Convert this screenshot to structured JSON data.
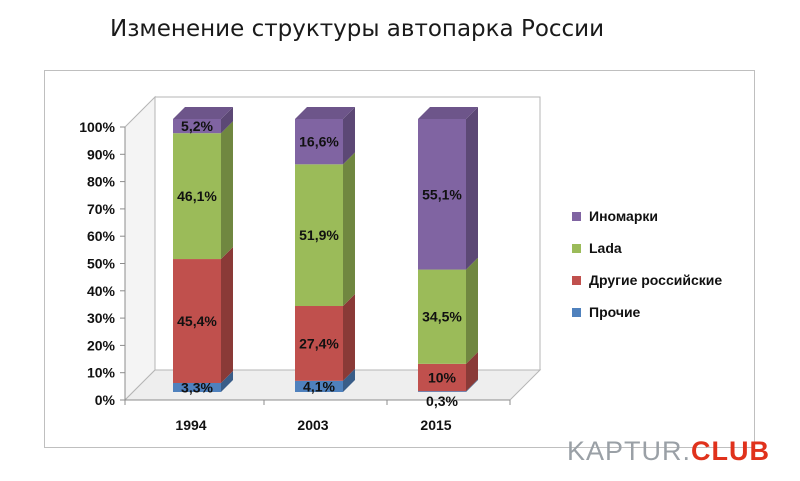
{
  "chart_data": {
    "type": "bar",
    "stacked": true,
    "stacked_percent": true,
    "three_d": true,
    "title": "Изменение структуры автопарка России",
    "categories": [
      "1994",
      "2003",
      "2015"
    ],
    "y_ticks": [
      "0%",
      "10%",
      "20%",
      "30%",
      "40%",
      "50%",
      "60%",
      "70%",
      "80%",
      "90%",
      "100%"
    ],
    "ylim": [
      0,
      100
    ],
    "grid": false,
    "legend_position": "right",
    "series": [
      {
        "name": "Прочие",
        "color": "#4f81bd",
        "values": [
          3.3,
          4.1,
          0.3
        ],
        "labels": [
          "3,3%",
          "4,1%",
          "0,3%"
        ]
      },
      {
        "name": "Другие российские",
        "color": "#c0504d",
        "values": [
          45.4,
          27.4,
          10
        ],
        "labels": [
          "45,4%",
          "27,4%",
          "10%"
        ]
      },
      {
        "name": "Lada",
        "color": "#9bbb59",
        "values": [
          46.1,
          51.9,
          34.5
        ],
        "labels": [
          "46,1%",
          "51,9%",
          "34,5%"
        ]
      },
      {
        "name": "Иномарки",
        "color": "#8064a2",
        "values": [
          5.2,
          16.6,
          55.1
        ],
        "labels": [
          "5,2%",
          "16,6%",
          "55,1%"
        ]
      }
    ]
  },
  "watermark": {
    "part1": "KAPTUR.",
    "part2": "CLUB"
  }
}
